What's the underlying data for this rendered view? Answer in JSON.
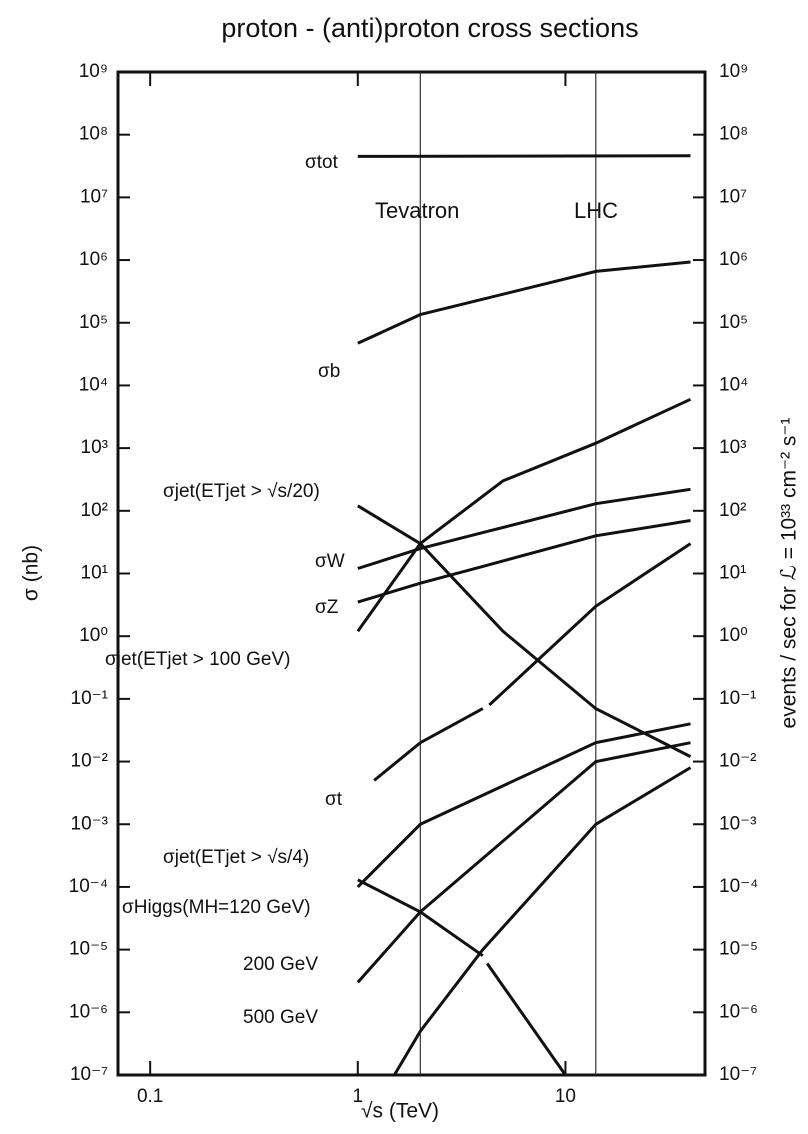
{
  "chart_data": {
    "type": "line",
    "title": "proton - (anti)proton cross sections",
    "xlabel": "√s (TeV)",
    "ylabel": "σ (nb)",
    "y2label": "events / sec for ℒ = 10³³ cm⁻² s⁻¹",
    "xscale": "log",
    "yscale": "log",
    "xlim": [
      0.07,
      47
    ],
    "ylim": [
      1e-07,
      1000000000.0
    ],
    "y2lim": [
      1e-07,
      1000000000.0
    ],
    "xticks": [
      0.1,
      1,
      10
    ],
    "yticks": [
      {
        "value": 1e-07,
        "label": "10⁻⁷"
      },
      {
        "value": 1e-06,
        "label": "10⁻⁶"
      },
      {
        "value": 1e-05,
        "label": "10⁻⁵"
      },
      {
        "value": 0.0001,
        "label": "10⁻⁴"
      },
      {
        "value": 0.001,
        "label": "10⁻³"
      },
      {
        "value": 0.01,
        "label": "10⁻²"
      },
      {
        "value": 0.1,
        "label": "10⁻¹"
      },
      {
        "value": 1,
        "label": "10⁰"
      },
      {
        "value": 10,
        "label": "10¹"
      },
      {
        "value": 100,
        "label": "10²"
      },
      {
        "value": 1000,
        "label": "10³"
      },
      {
        "value": 10000,
        "label": "10⁴"
      },
      {
        "value": 100000,
        "label": "10⁵"
      },
      {
        "value": 1000000,
        "label": "10⁶"
      },
      {
        "value": 10000000,
        "label": "10⁷"
      },
      {
        "value": 100000000,
        "label": "10⁸"
      },
      {
        "value": 1000000000,
        "label": "10⁹"
      }
    ],
    "y2ticks": [
      {
        "value": 1e-07,
        "label": "10⁻⁷"
      },
      {
        "value": 1e-06,
        "label": "10⁻⁶"
      },
      {
        "value": 1e-05,
        "label": "10⁻⁵"
      },
      {
        "value": 0.0001,
        "label": "10⁻⁴"
      },
      {
        "value": 0.001,
        "label": "10⁻³"
      },
      {
        "value": 0.01,
        "label": "10⁻²"
      },
      {
        "value": 0.1,
        "label": "10⁻¹"
      },
      {
        "value": 1,
        "label": "10⁰"
      },
      {
        "value": 10,
        "label": "10¹"
      },
      {
        "value": 100,
        "label": "10²"
      },
      {
        "value": 1000,
        "label": "10³"
      },
      {
        "value": 10000,
        "label": "10⁴"
      },
      {
        "value": 100000,
        "label": "10⁵"
      },
      {
        "value": 1000000,
        "label": "10⁶"
      },
      {
        "value": 10000000,
        "label": "10⁷"
      },
      {
        "value": 100000000,
        "label": "10⁸"
      },
      {
        "value": 1000000000,
        "label": "10⁹"
      }
    ],
    "vlines": [
      {
        "label": "Tevatron",
        "x": 2
      },
      {
        "label": "LHC",
        "x": 14
      }
    ],
    "series": [
      {
        "name": "σtot",
        "color": "#111111",
        "x": [
          1,
          40
        ],
        "values": [
          45000000,
          46000000
        ]
      },
      {
        "name": "σb",
        "color": "#111111",
        "x": [
          1,
          2,
          14,
          40
        ],
        "values": [
          47000,
          135000,
          660000,
          930000
        ]
      },
      {
        "name": "σjet(ETjet > √s/20)",
        "color": "#111111",
        "x": [
          1,
          2,
          5,
          14,
          40
        ],
        "values": [
          120,
          30,
          1.2,
          0.07,
          0.012
        ]
      },
      {
        "name": "σW",
        "color": "#111111",
        "x": [
          1,
          2,
          4,
          14,
          40
        ],
        "values": [
          12,
          25,
          45,
          130,
          220
        ]
      },
      {
        "name": "σZ",
        "color": "#111111",
        "x": [
          1,
          2,
          4,
          14,
          40
        ],
        "values": [
          3.5,
          7,
          13,
          40,
          70
        ]
      },
      {
        "name": "σjet(ETjet > 100 GeV)",
        "color": "#111111",
        "x": [
          1,
          2,
          5,
          14,
          40
        ],
        "values": [
          1.2,
          30,
          300,
          1200,
          6000
        ]
      },
      {
        "name": "σt",
        "color": "#111111",
        "x": [
          1.2,
          2,
          4,
          4.2,
          4.3,
          14,
          40
        ],
        "values": [
          0.005,
          0.02,
          0.07,
          null,
          0.08,
          3,
          30
        ]
      },
      {
        "name": "σjet(ETjet > √s/4)",
        "color": "#111111",
        "x": [
          1,
          2,
          4,
          4.1,
          4.2,
          10
        ],
        "values": [
          0.00013,
          4e-05,
          8e-06,
          null,
          6e-06,
          1e-07
        ]
      },
      {
        "name": "σHiggs(MH=120 GeV)",
        "color": "#111111",
        "x": [
          1,
          2,
          14,
          40
        ],
        "values": [
          0.0001,
          0.001,
          0.02,
          0.04
        ]
      },
      {
        "name": "200 GeV",
        "color": "#111111",
        "x": [
          1,
          2,
          14,
          40
        ],
        "values": [
          3e-06,
          4e-05,
          0.01,
          0.02
        ]
      },
      {
        "name": "500 GeV",
        "color": "#111111",
        "x": [
          1.5,
          2,
          4,
          14,
          40
        ],
        "values": [
          1e-07,
          5e-07,
          1e-05,
          0.001,
          0.008
        ]
      }
    ]
  }
}
